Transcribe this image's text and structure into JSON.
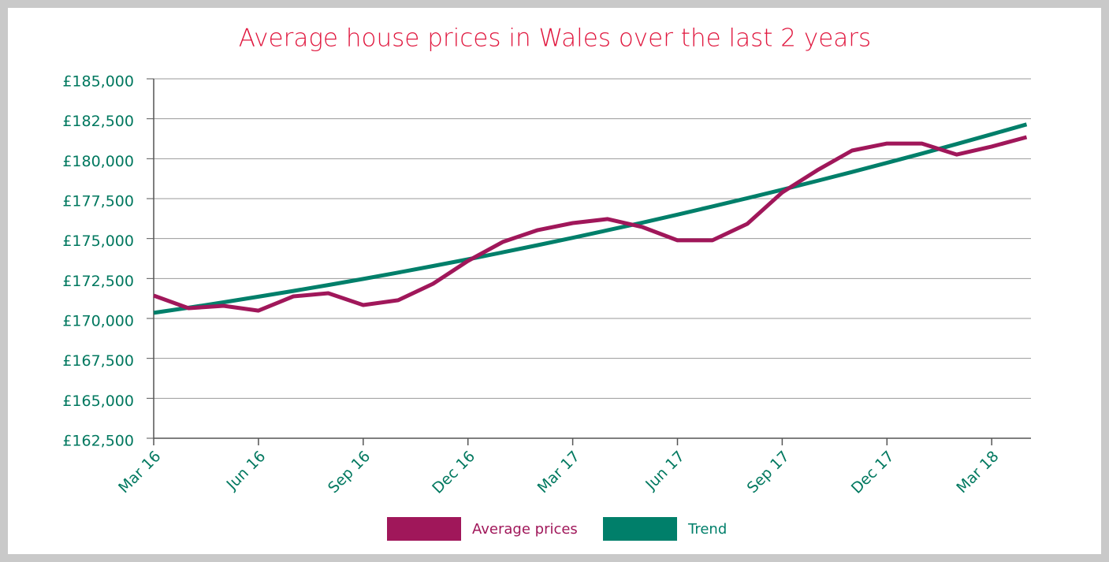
{
  "chart_data": {
    "type": "line",
    "title": "Average house prices in Wales over the last 2 years",
    "categories": [
      "Mar 16",
      null,
      null,
      "Jun 16",
      null,
      null,
      "Sep 16",
      null,
      null,
      "Dec 16",
      null,
      null,
      "Mar 17",
      null,
      null,
      "Jun 17",
      null,
      null,
      "Sep 17",
      null,
      null,
      "Dec 17",
      null,
      null,
      "Mar 18",
      null
    ],
    "series": [
      {
        "name": "Average prices",
        "color": "#a0175a",
        "values": [
          171430,
          170640,
          170790,
          170490,
          171380,
          171580,
          170840,
          171140,
          172170,
          173600,
          174790,
          175530,
          175970,
          176220,
          175720,
          174890,
          174890,
          175920,
          177890,
          179270,
          180510,
          180950,
          180950,
          180260,
          180760,
          181350
        ]
      },
      {
        "name": "Trend",
        "color": "#007f6a",
        "values": [
          170350,
          170670,
          171010,
          171360,
          171720,
          172090,
          172470,
          172870,
          173280,
          173700,
          174140,
          174590,
          175050,
          175520,
          176000,
          176500,
          177010,
          177530,
          178060,
          178610,
          179170,
          179740,
          180320,
          180920,
          181530,
          182150
        ]
      }
    ],
    "ylim": [
      162500,
      185000
    ],
    "yticks": [
      {
        "value": 162500,
        "label": "£162,500"
      },
      {
        "value": 165000,
        "label": "£165,000"
      },
      {
        "value": 167500,
        "label": "£167,500"
      },
      {
        "value": 170000,
        "label": "£170,000"
      },
      {
        "value": 172500,
        "label": "£172,500"
      },
      {
        "value": 175000,
        "label": "£175,000"
      },
      {
        "value": 177500,
        "label": "£177,500"
      },
      {
        "value": 180000,
        "label": "£180,000"
      },
      {
        "value": 182500,
        "label": "£182,500"
      },
      {
        "value": 185000,
        "label": "£185,000"
      }
    ],
    "grid": true
  }
}
